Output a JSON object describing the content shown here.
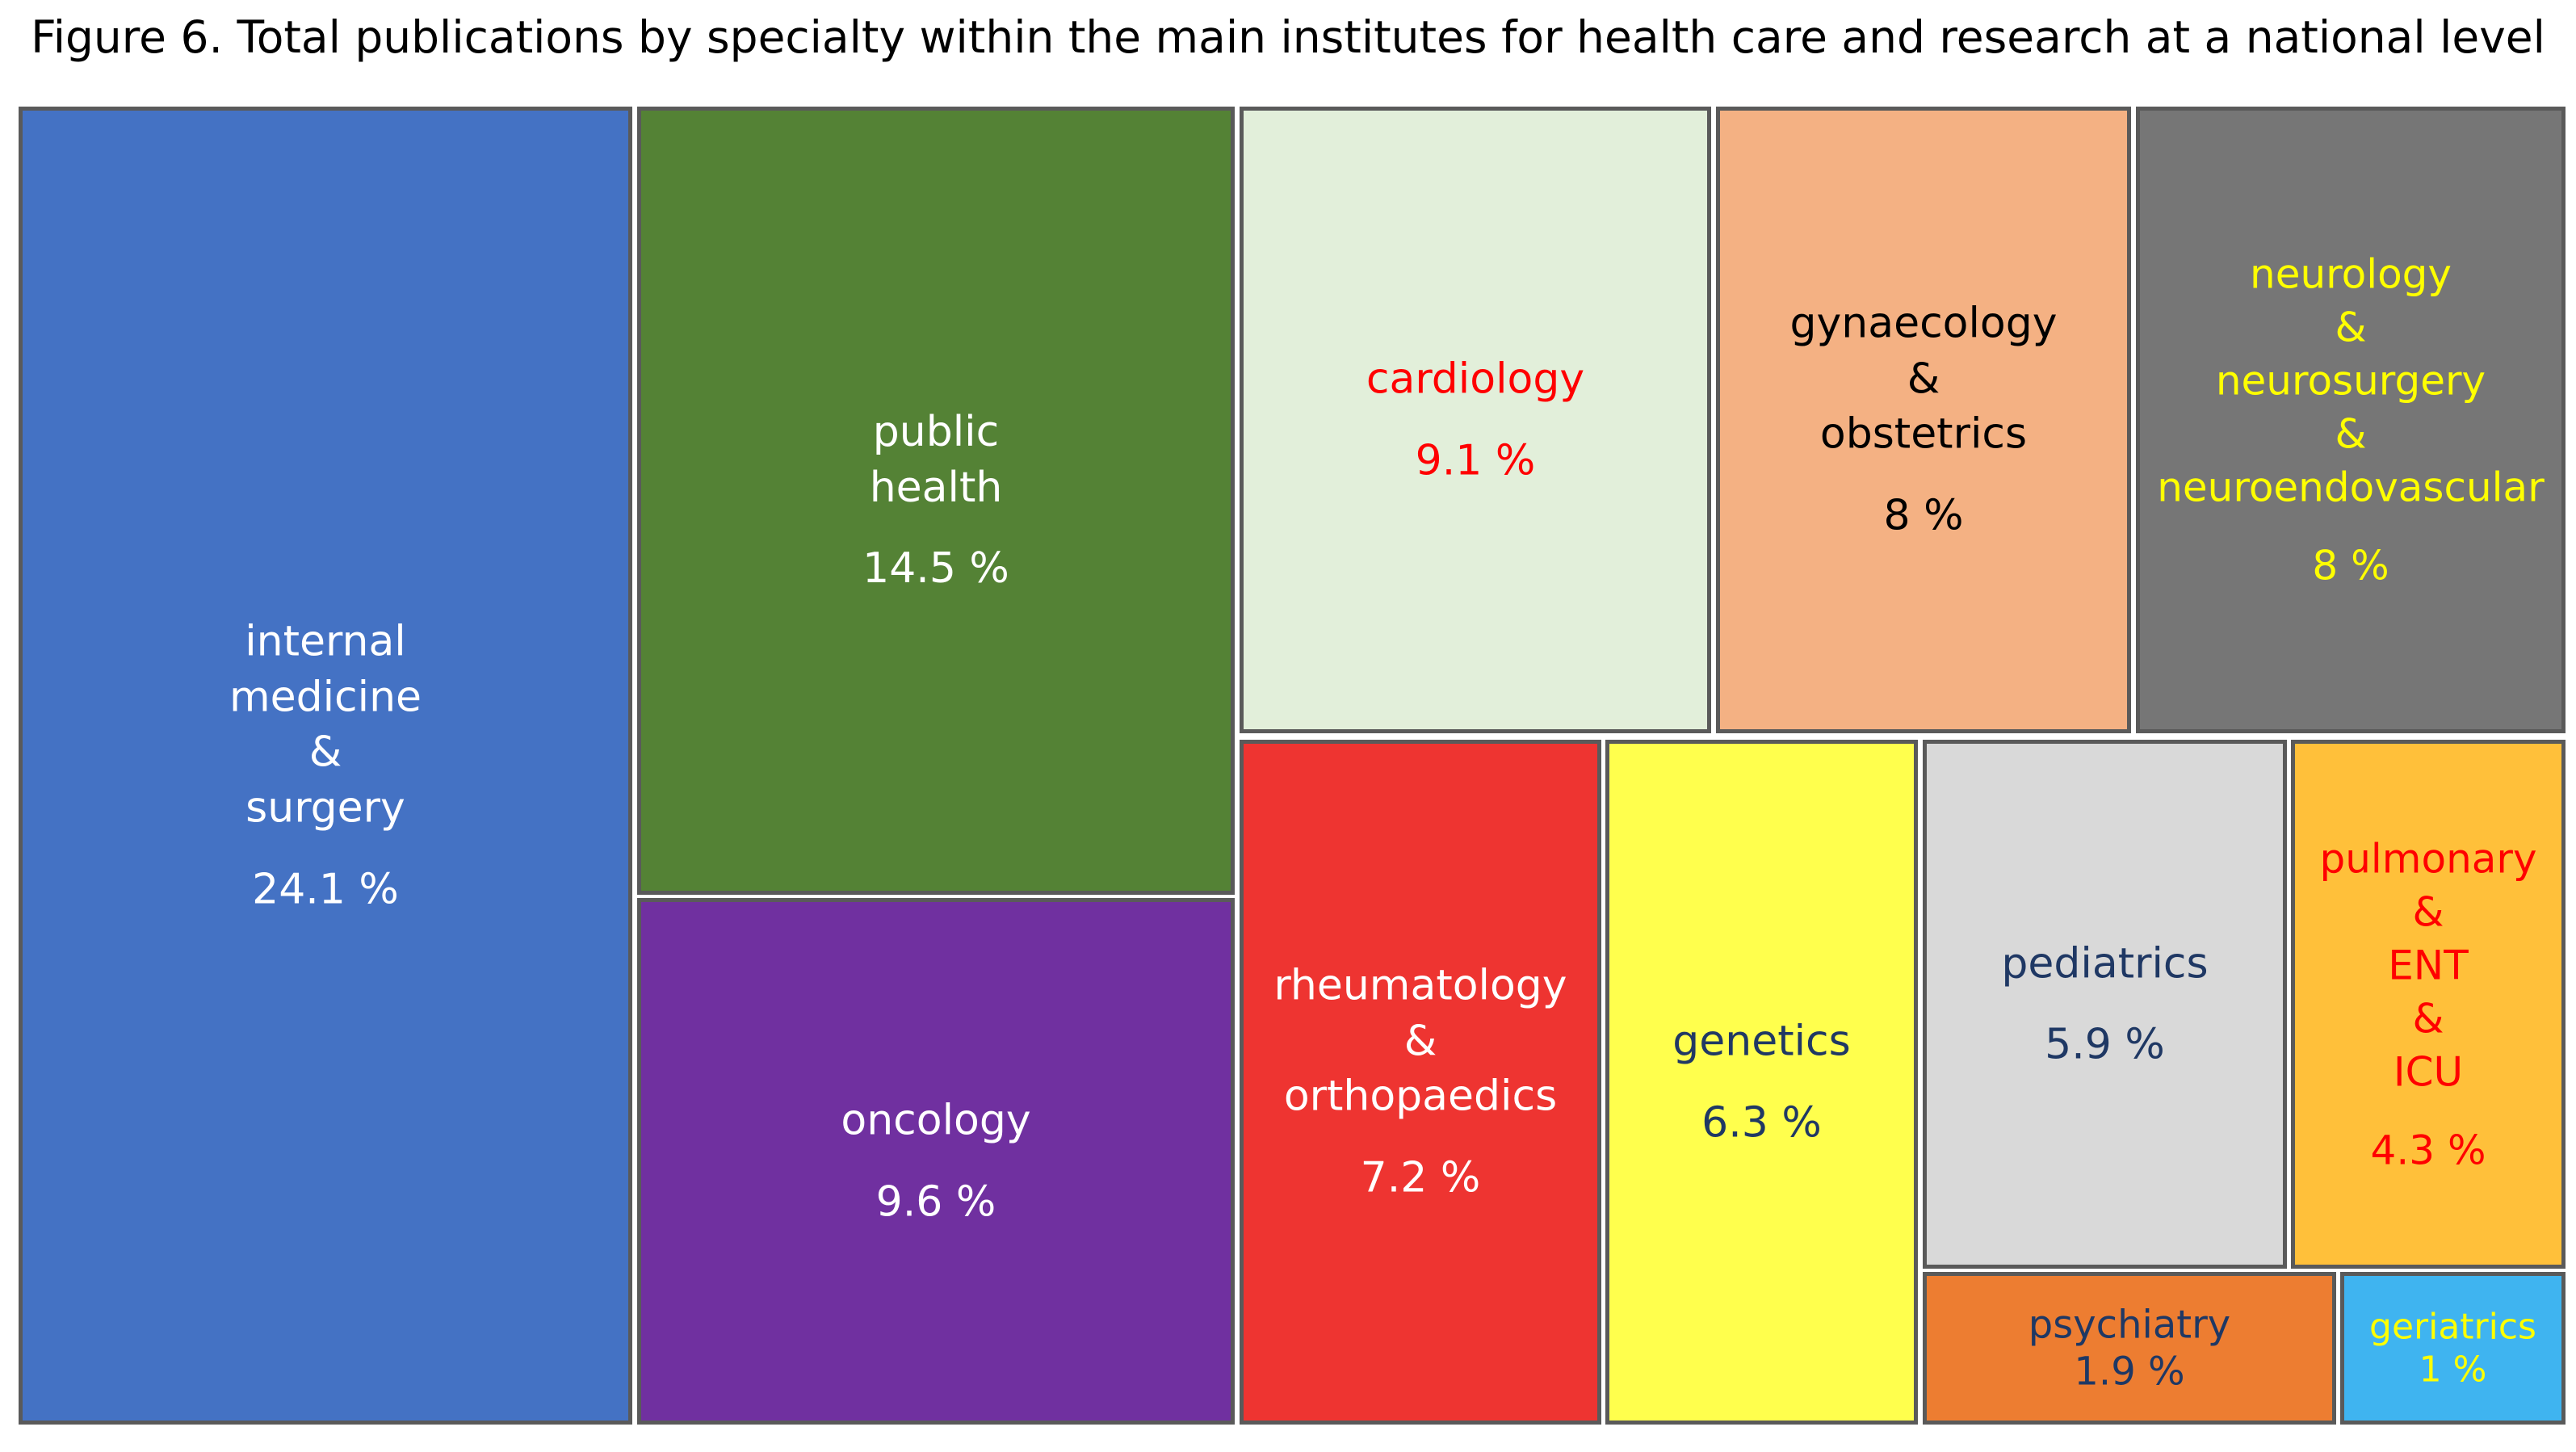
{
  "chart_data": {
    "type": "treemap",
    "title": "Figure 6. Total publications by specialty within the main institutes for health care and research at a national level",
    "unit": "%",
    "items": [
      {
        "name": "internal medicine & surgery",
        "label_lines": [
          "internal",
          "medicine",
          "&",
          "surgery"
        ],
        "value_label": "24.1 %",
        "value": 24.1,
        "color": "#4472c4",
        "text_color": "#ffffff"
      },
      {
        "name": "public health",
        "label_lines": [
          "public",
          "health"
        ],
        "value_label": "14.5 %",
        "value": 14.5,
        "color": "#548235",
        "text_color": "#ffffff"
      },
      {
        "name": "oncology",
        "label_lines": [
          "oncology"
        ],
        "value_label": "9.6 %",
        "value": 9.6,
        "color": "#7030a0",
        "text_color": "#ffffff"
      },
      {
        "name": "cardiology",
        "label_lines": [
          "cardiology"
        ],
        "value_label": "9.1 %",
        "value": 9.1,
        "color": "#e2efda",
        "text_color": "#ff0000"
      },
      {
        "name": "gynaecology & obstetrics",
        "label_lines": [
          "gynaecology",
          "&",
          "obstetrics"
        ],
        "value_label": "8 %",
        "value": 8,
        "color": "#f4b183",
        "text_color": "#000000"
      },
      {
        "name": "neurology & neurosurgery & neuroendovascular",
        "label_lines": [
          "neurology",
          "&",
          "neurosurgery",
          "&",
          "neuroendovascular"
        ],
        "value_label": "8 %",
        "value": 8,
        "color": "#767676",
        "text_color": "#ffff00"
      },
      {
        "name": "rheumatology & orthopaedics",
        "label_lines": [
          "rheumatology",
          "&",
          "orthopaedics"
        ],
        "value_label": "7.2 %",
        "value": 7.2,
        "color": "#ee3431",
        "text_color": "#ffffff"
      },
      {
        "name": "genetics",
        "label_lines": [
          "genetics"
        ],
        "value_label": "6.3 %",
        "value": 6.3,
        "color": "#ffff4d",
        "text_color": "#203864"
      },
      {
        "name": "pediatrics",
        "label_lines": [
          "pediatrics"
        ],
        "value_label": "5.9 %",
        "value": 5.9,
        "color": "#d9d9d9",
        "text_color": "#1f3864"
      },
      {
        "name": "pulmonary & ENT & ICU",
        "label_lines": [
          "pulmonary",
          "&",
          "ENT",
          "&",
          "ICU"
        ],
        "value_label": "4.3 %",
        "value": 4.3,
        "color": "#ffc03a",
        "text_color": "#ff0000"
      },
      {
        "name": "psychiatry",
        "label_lines": [
          "psychiatry"
        ],
        "value_label": "1.9 %",
        "value": 1.9,
        "color": "#ed7d31",
        "text_color": "#1f3864"
      },
      {
        "name": "geriatrics",
        "label_lines": [
          "geriatrics"
        ],
        "value_label": "1 %",
        "value": 1,
        "color": "#3fb4f0",
        "text_color": "#ffff00"
      }
    ]
  }
}
